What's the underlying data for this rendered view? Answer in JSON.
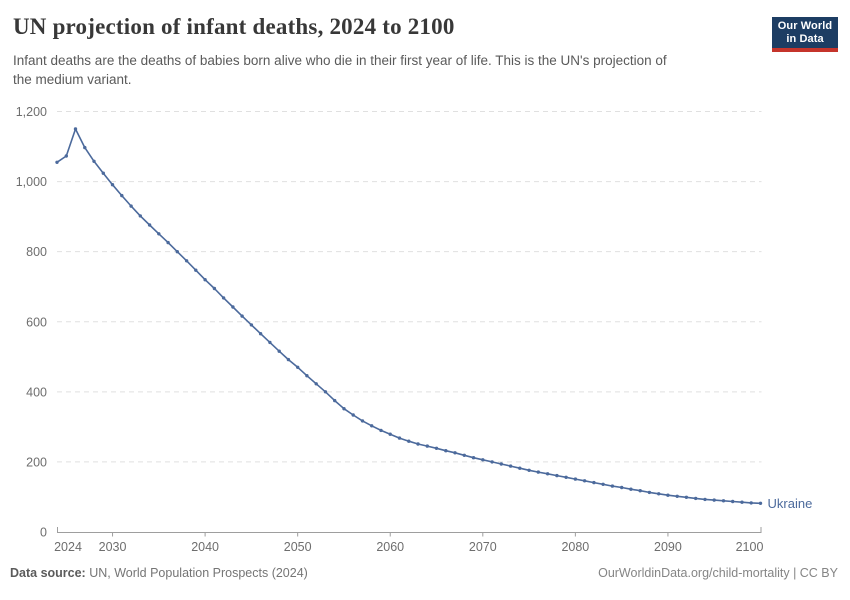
{
  "header": {
    "title": "UN projection of infant deaths, 2024 to 2100",
    "subtitle_line1": "Infant deaths are the deaths of babies born alive who die in their first year of life. This is the UN's projection of",
    "subtitle_line2": "the medium variant.",
    "logo": {
      "line1": "Our World",
      "line2": "in Data",
      "bg_color": "#1d3d63",
      "accent_color": "#c5342b"
    }
  },
  "chart_data": {
    "type": "line",
    "title": "UN projection of infant deaths, 2024 to 2100",
    "xlabel": "",
    "ylabel": "",
    "xlim": [
      2024,
      2100
    ],
    "ylim": [
      0,
      1200
    ],
    "grid": "horizontal-dashed",
    "legend_position": "end-of-line-label",
    "x_ticks": [
      2024,
      2030,
      2040,
      2050,
      2060,
      2070,
      2080,
      2090,
      2100
    ],
    "y_ticks": [
      0,
      200,
      400,
      600,
      800,
      1000,
      1200
    ],
    "y_tick_labels": [
      "0",
      "200",
      "400",
      "600",
      "800",
      "1,000",
      "1,200"
    ],
    "x": [
      2024,
      2025,
      2026,
      2027,
      2028,
      2029,
      2030,
      2031,
      2032,
      2033,
      2034,
      2035,
      2036,
      2037,
      2038,
      2039,
      2040,
      2041,
      2042,
      2043,
      2044,
      2045,
      2046,
      2047,
      2048,
      2049,
      2050,
      2051,
      2052,
      2053,
      2054,
      2055,
      2056,
      2057,
      2058,
      2059,
      2060,
      2061,
      2062,
      2063,
      2064,
      2065,
      2066,
      2067,
      2068,
      2069,
      2070,
      2071,
      2072,
      2073,
      2074,
      2075,
      2076,
      2077,
      2078,
      2079,
      2080,
      2081,
      2082,
      2083,
      2084,
      2085,
      2086,
      2087,
      2088,
      2089,
      2090,
      2091,
      2092,
      2093,
      2094,
      2095,
      2096,
      2097,
      2098,
      2099,
      2100
    ],
    "series": [
      {
        "name": "Ukraine",
        "color": "#4c6a9c",
        "values": [
          1055,
          1073,
          1150,
          1097,
          1058,
          1024,
          991,
          960,
          930,
          902,
          876,
          851,
          826,
          800,
          774,
          747,
          720,
          695,
          668,
          642,
          616,
          591,
          566,
          541,
          516,
          492,
          470,
          446,
          423,
          400,
          375,
          352,
          334,
          317,
          303,
          290,
          279,
          268,
          259,
          251,
          245,
          239,
          232,
          226,
          219,
          212,
          206,
          200,
          194,
          188,
          182,
          176,
          171,
          166,
          161,
          156,
          151,
          146,
          141,
          136,
          131,
          127,
          122,
          118,
          113,
          109,
          105,
          102,
          99,
          96,
          93,
          91,
          89,
          87,
          85,
          83,
          82
        ]
      }
    ]
  },
  "footer": {
    "source_label": "Data source:",
    "source_text": " UN, World Population Prospects (2024)",
    "credit": "OurWorldinData.org/child-mortality | CC BY"
  },
  "colors": {
    "line": "#4c6a9c",
    "grid": "#e0e0e0",
    "axis": "#9e9e9e",
    "tick_label": "#6e6e6e",
    "title": "#383838",
    "subtitle": "#5a5a5a",
    "footer": "#858585"
  }
}
